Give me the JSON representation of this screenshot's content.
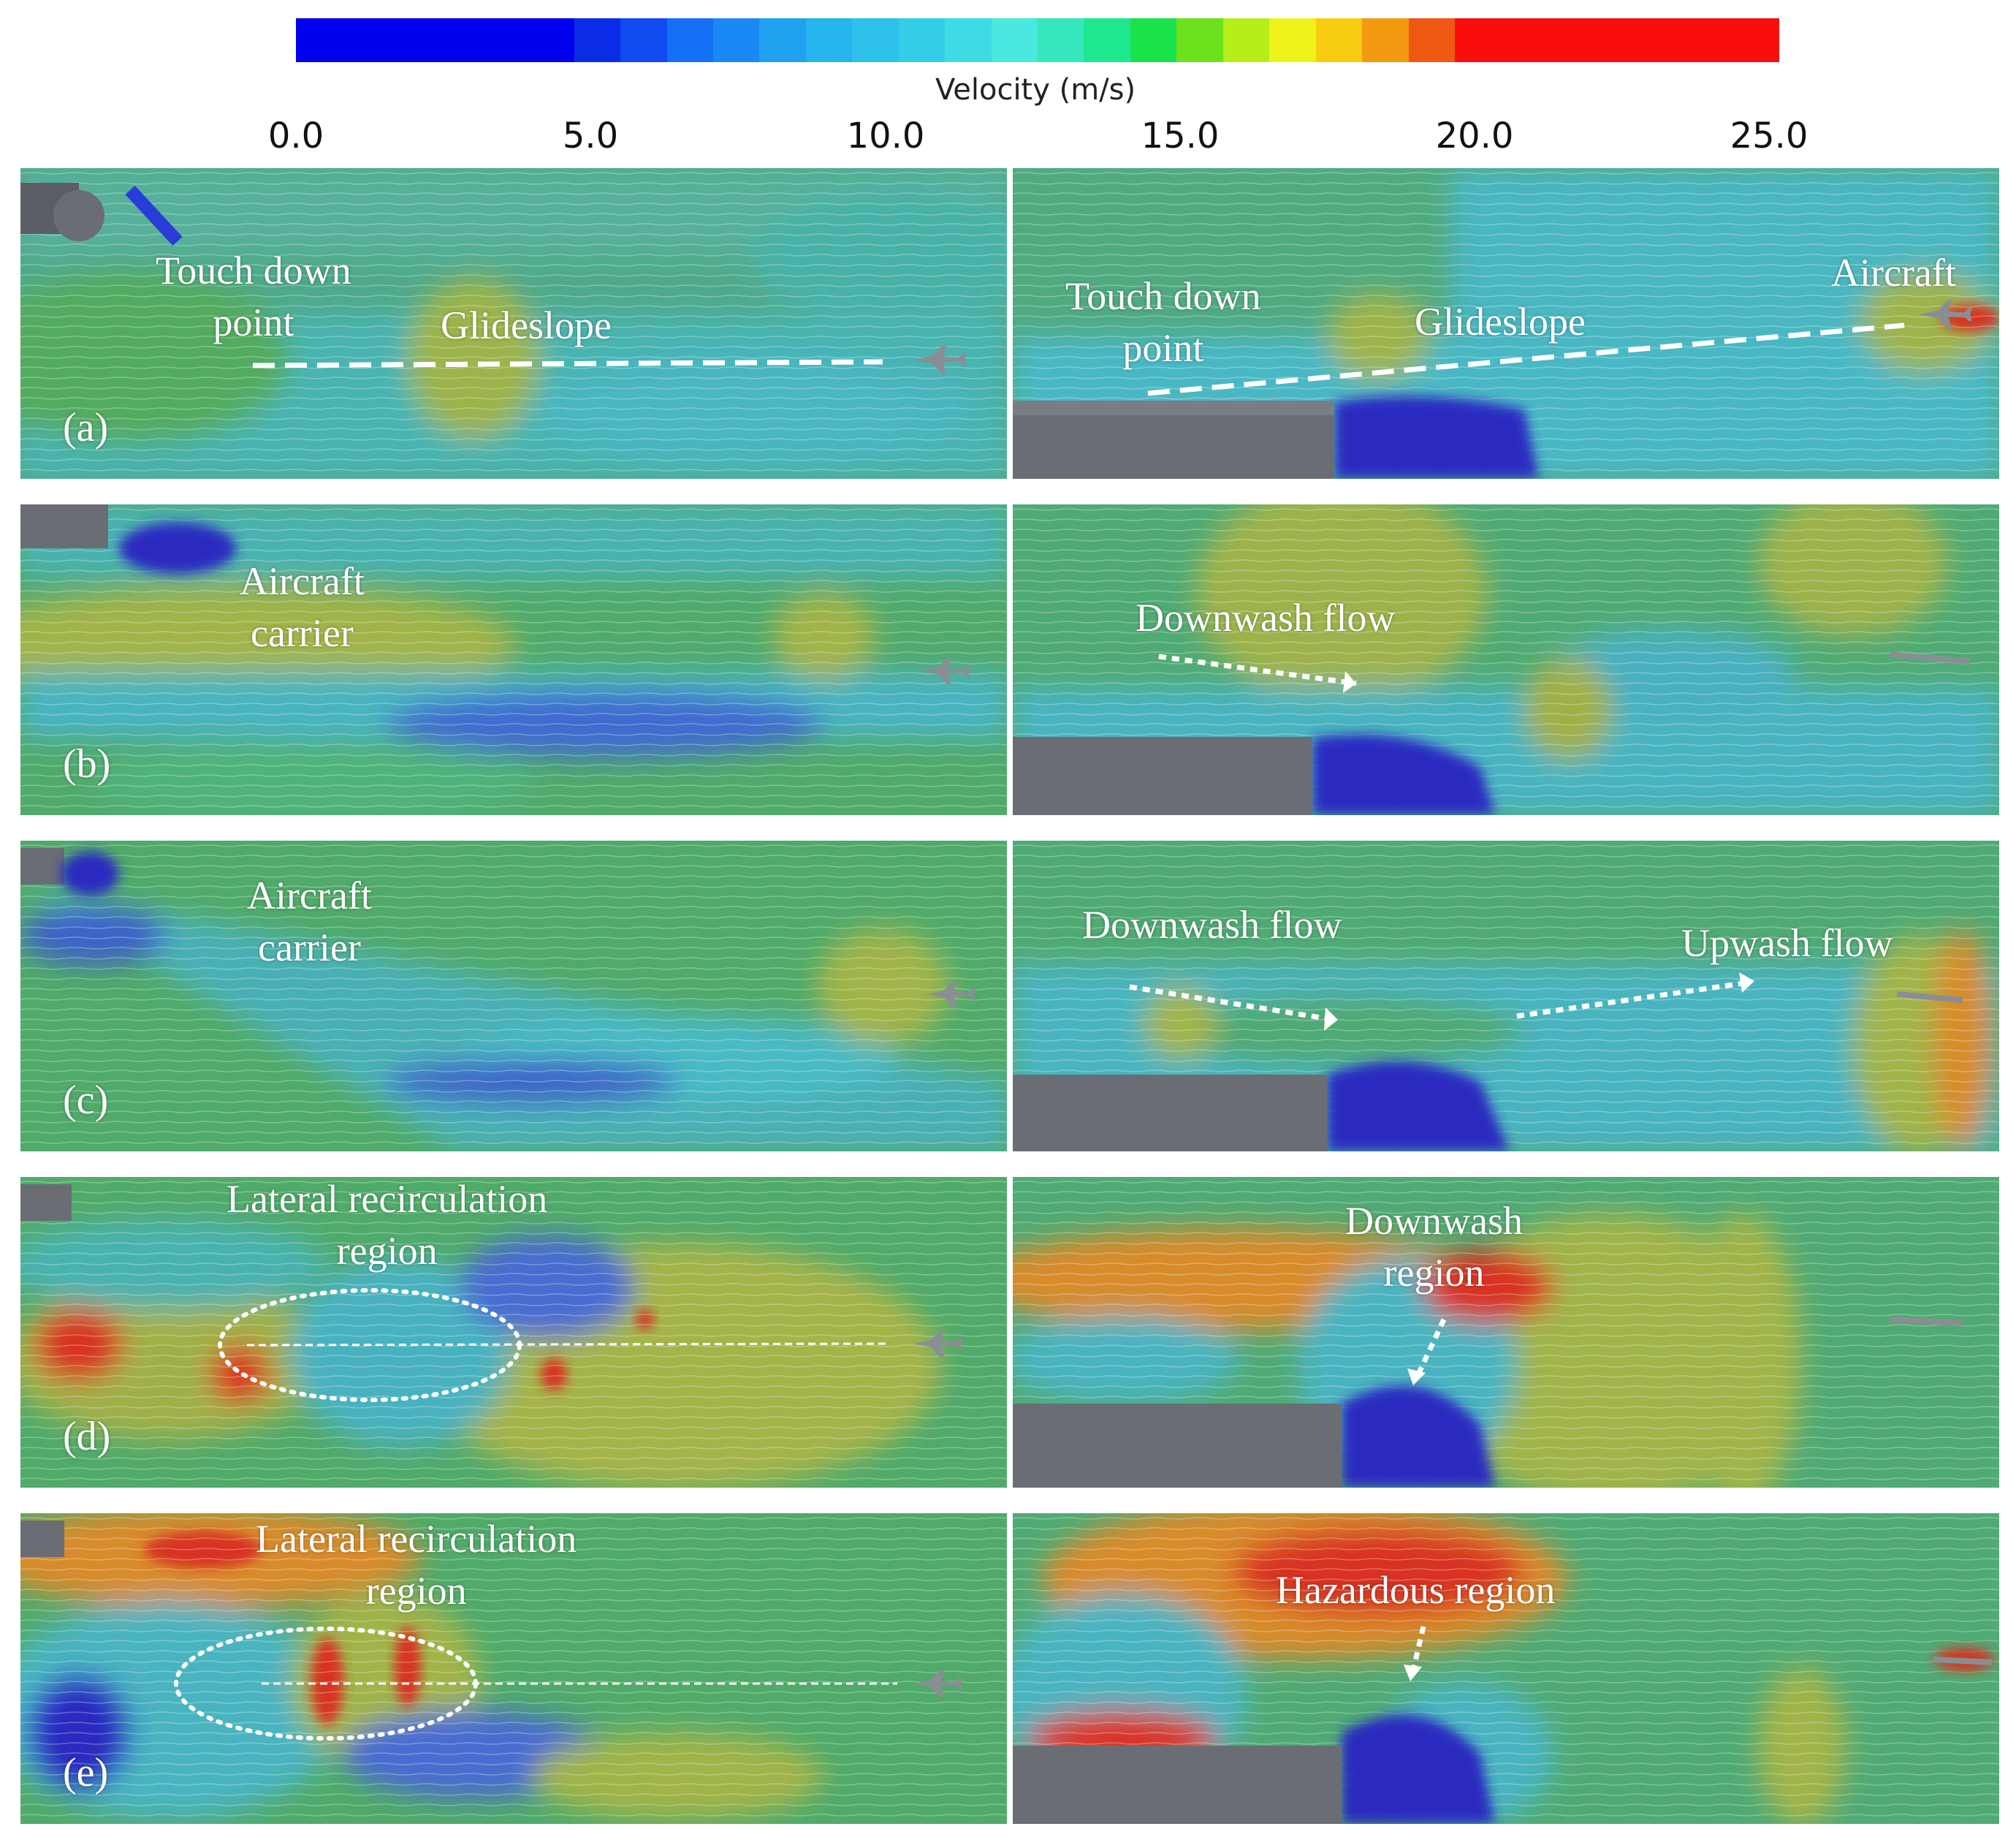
{
  "colorbar": {
    "title": "Velocity (m/s)",
    "ticks": [
      "0.0",
      "5.0",
      "10.0",
      "15.0",
      "20.0",
      "25.0"
    ],
    "colors": [
      "#0000ee",
      "#0000ee",
      "#0000ee",
      "#0000ee",
      "#0000ee",
      "#0000ee",
      "#0a2ce6",
      "#0f4bf0",
      "#1470f5",
      "#1a88f5",
      "#20a2f0",
      "#25b4ec",
      "#2cc0ea",
      "#34cde8",
      "#3fdbe4",
      "#4ae8de",
      "#36e6bd",
      "#1ee88e",
      "#1ae24a",
      "#6ee11e",
      "#b6ee1a",
      "#eff31a",
      "#f8cc10",
      "#f49a10",
      "#ee5812",
      "#fa0d0d",
      "#fa0d0d",
      "#fa0d0d",
      "#fa0d0d",
      "#fa0d0d",
      "#fa0d0d",
      "#fa0d0d"
    ]
  },
  "panels": {
    "a": {
      "letter": "(a)",
      "left_labels": [
        "Touch down\npoint",
        "Glideslope"
      ],
      "right_labels": [
        "Touch down\npoint",
        "Glideslope",
        "Aircraft"
      ]
    },
    "b": {
      "letter": "(b)",
      "left_labels": [
        "Aircraft\ncarrier"
      ],
      "right_labels": [
        "Downwash flow"
      ]
    },
    "c": {
      "letter": "(c)",
      "left_labels": [
        "Aircraft\ncarrier"
      ],
      "right_labels": [
        "Downwash flow",
        "Upwash flow"
      ]
    },
    "d": {
      "letter": "(d)",
      "left_labels": [
        "Lateral recirculation\nregion"
      ],
      "right_labels": [
        "Downwash\nregion"
      ]
    },
    "e": {
      "letter": "(e)",
      "left_labels": [
        "Lateral recirculation\nregion"
      ],
      "right_labels": [
        "Hazardous region"
      ]
    }
  },
  "colors": {
    "field_green": "#4faa6a",
    "field_cyan": "#4ab0b8",
    "field_blue": "#2a2cc0",
    "field_yellow": "#a4b448",
    "field_red": "#d83020",
    "ship_grey": "#6a6e74"
  }
}
